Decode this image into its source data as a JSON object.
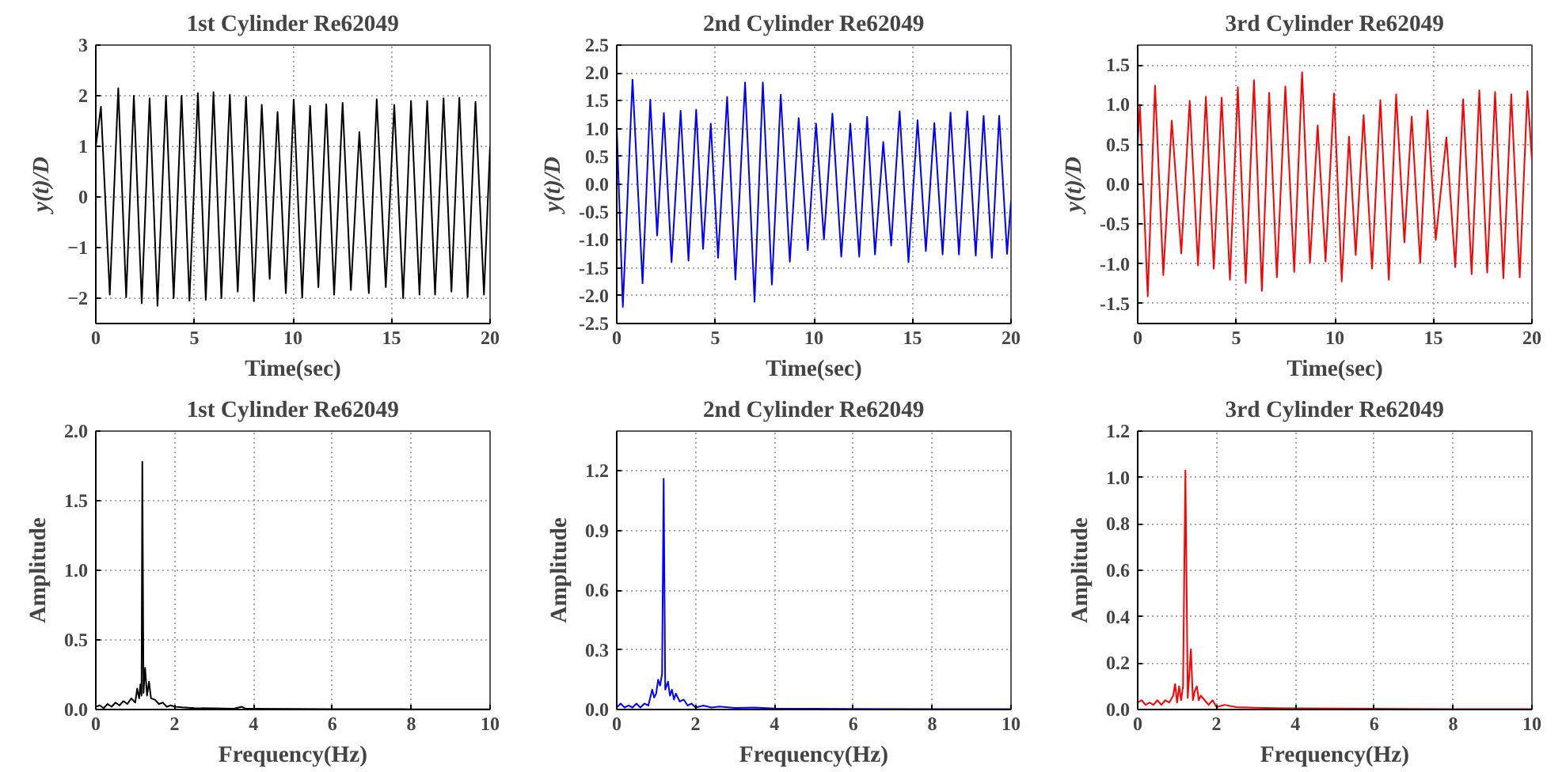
{
  "chart_data": [
    {
      "type": "line",
      "title": "1st Cylinder Re62049",
      "xlabel": "Time(sec)",
      "ylabel": "y(t)/D",
      "grid": true,
      "xlim": [
        0,
        20
      ],
      "ylim": [
        -2.5,
        3
      ],
      "xticks": [
        0,
        5,
        10,
        15,
        20
      ],
      "yticks": [
        -2,
        -1,
        0,
        1,
        2,
        3
      ],
      "x": [
        0,
        0.26,
        0.71,
        1.14,
        1.54,
        1.93,
        2.33,
        2.73,
        3.13,
        3.56,
        3.95,
        4.35,
        4.75,
        5.18,
        5.58,
        5.97,
        6.37,
        6.8,
        7.2,
        7.62,
        8.02,
        8.42,
        8.82,
        9.22,
        9.64,
        10.04,
        10.47,
        10.87,
        11.29,
        11.69,
        12.09,
        12.52,
        12.94,
        13.37,
        13.85,
        14.25,
        14.71,
        15.14,
        15.59,
        15.99,
        16.42,
        16.81,
        17.21,
        17.64,
        18.04,
        18.44,
        18.86,
        19.26,
        19.69,
        20
      ],
      "series": [
        {
          "color": "#000000",
          "values": [
            1.0,
            1.78,
            -1.93,
            2.15,
            -1.98,
            2.0,
            -2.1,
            1.95,
            -2.15,
            2.0,
            -2.0,
            2.0,
            -2.05,
            2.05,
            -2.03,
            2.07,
            -2.0,
            2.02,
            -1.87,
            1.98,
            -2.06,
            1.82,
            -1.62,
            1.68,
            -1.9,
            1.92,
            -1.99,
            1.8,
            -1.78,
            1.83,
            -1.93,
            1.86,
            -1.84,
            1.28,
            -1.9,
            1.93,
            -1.78,
            1.82,
            -2.0,
            1.9,
            -1.93,
            1.9,
            -1.93,
            1.95,
            -1.87,
            1.96,
            -1.98,
            1.88,
            -1.93,
            1.0
          ]
        }
      ]
    },
    {
      "type": "line",
      "title": "2nd Cylinder Re62049",
      "xlabel": "Time(sec)",
      "ylabel": "y(t)/D",
      "grid": true,
      "xlim": [
        0,
        20
      ],
      "ylim": [
        -2.5,
        2.5
      ],
      "xticks": [
        0,
        5,
        10,
        15,
        20
      ],
      "yticks": [
        {
          "value": -2.5,
          "label": "-2.5"
        },
        {
          "value": -2.0,
          "label": "-2.0"
        },
        {
          "value": -1.5,
          "label": "-1.5"
        },
        {
          "value": -1.0,
          "label": "-1.0"
        },
        {
          "value": -0.5,
          "label": "-0.5"
        },
        {
          "value": 0,
          "label": "0.0"
        },
        {
          "value": 0.5,
          "label": "0.5"
        },
        {
          "value": 1.0,
          "label": "1.0"
        },
        {
          "value": 1.5,
          "label": "1.5"
        },
        {
          "value": 2.0,
          "label": "2.0"
        },
        {
          "value": 2.5,
          "label": "2.5"
        }
      ],
      "x": [
        0,
        0.31,
        0.8,
        1.31,
        1.7,
        2.05,
        2.39,
        2.78,
        3.24,
        3.64,
        4.03,
        4.38,
        4.77,
        5.14,
        5.6,
        6.02,
        6.51,
        6.99,
        7.41,
        7.87,
        8.32,
        8.78,
        9.23,
        9.69,
        10.11,
        10.51,
        10.94,
        11.39,
        11.85,
        12.3,
        12.7,
        13.1,
        13.52,
        13.92,
        14.35,
        14.8,
        15.26,
        15.68,
        16.11,
        16.53,
        16.93,
        17.36,
        17.78,
        18.21,
        18.61,
        19.03,
        19.4,
        19.8,
        20
      ],
      "series": [
        {
          "color": "#0000ff",
          "values": [
            1.04,
            -2.2,
            1.88,
            -1.78,
            1.52,
            -0.92,
            1.28,
            -1.4,
            1.32,
            -1.37,
            1.34,
            -1.16,
            1.09,
            -1.32,
            1.57,
            -1.71,
            1.83,
            -2.11,
            1.83,
            -1.8,
            1.61,
            -1.39,
            1.19,
            -1.18,
            1.09,
            -0.99,
            1.27,
            -1.3,
            1.09,
            -1.3,
            1.21,
            -1.26,
            0.76,
            -1.1,
            1.31,
            -1.4,
            1.15,
            -1.2,
            1.1,
            -1.26,
            1.29,
            -1.26,
            1.31,
            -1.28,
            1.23,
            -1.32,
            1.23,
            -1.25,
            -0.3
          ]
        }
      ]
    },
    {
      "type": "line",
      "title": "3rd Cylinder Re62049",
      "xlabel": "Time(sec)",
      "ylabel": "y(t)/D",
      "grid": true,
      "xlim": [
        0,
        20
      ],
      "ylim": [
        -1.75,
        1.75
      ],
      "xticks": [
        0,
        5,
        10,
        15,
        20
      ],
      "yticks": [
        {
          "value": -1.5,
          "label": "-1.5"
        },
        {
          "value": -1.0,
          "label": "-1.0"
        },
        {
          "value": -0.5,
          "label": "-0.5"
        },
        {
          "value": 0,
          "label": "0.0"
        },
        {
          "value": 0.5,
          "label": "0.5"
        },
        {
          "value": 1.0,
          "label": "1.0"
        },
        {
          "value": 1.5,
          "label": "1.5"
        }
      ],
      "x": [
        0,
        0.11,
        0.51,
        0.88,
        1.3,
        1.73,
        2.21,
        2.64,
        3.06,
        3.46,
        3.86,
        4.26,
        4.68,
        5.08,
        5.48,
        5.9,
        6.3,
        6.67,
        7.06,
        7.49,
        7.94,
        8.34,
        8.74,
        9.13,
        9.53,
        9.96,
        10.35,
        10.72,
        11.06,
        11.46,
        11.89,
        12.31,
        12.74,
        13.11,
        13.53,
        13.9,
        14.33,
        14.7,
        15.12,
        15.66,
        16.11,
        16.51,
        16.94,
        17.33,
        17.73,
        18.13,
        18.55,
        18.95,
        19.38,
        19.77,
        20
      ],
      "series": [
        {
          "color": "#ff0000",
          "values": [
            0.5,
            1.0,
            -1.41,
            1.24,
            -1.14,
            0.8,
            -0.87,
            1.05,
            -1.02,
            1.1,
            -1.06,
            1.09,
            -1.2,
            1.22,
            -1.24,
            1.31,
            -1.34,
            1.15,
            -1.17,
            1.23,
            -1.1,
            1.41,
            -0.99,
            0.74,
            -0.97,
            1.14,
            -1.22,
            0.6,
            -0.89,
            0.87,
            -1.06,
            1.06,
            -1.2,
            1.13,
            -0.73,
            0.85,
            -0.99,
            0.93,
            -0.7,
            0.59,
            -1.04,
            1.07,
            -1.13,
            1.18,
            -1.11,
            1.16,
            -1.18,
            1.13,
            -1.17,
            1.17,
            0.3
          ]
        }
      ]
    },
    {
      "type": "line",
      "title": "1st Cylinder Re62049",
      "xlabel": "Frequency(Hz)",
      "ylabel": "Amplitude",
      "grid": true,
      "xlim": [
        0,
        10
      ],
      "ylim": [
        0,
        2
      ],
      "xticks": [
        0,
        2,
        4,
        6,
        8,
        10
      ],
      "yticks": [
        {
          "value": 0,
          "label": "0.0"
        },
        {
          "value": 0.5,
          "label": "0.5"
        },
        {
          "value": 1.0,
          "label": "1.0"
        },
        {
          "value": 1.5,
          "label": "1.5"
        },
        {
          "value": 2.0,
          "label": "2.0"
        }
      ],
      "x": [
        0,
        0.1,
        0.2,
        0.3,
        0.4,
        0.5,
        0.6,
        0.7,
        0.8,
        0.9,
        1.0,
        1.05,
        1.1,
        1.13,
        1.16,
        1.18,
        1.21,
        1.25,
        1.3,
        1.35,
        1.4,
        1.5,
        1.6,
        1.7,
        1.8,
        1.9,
        2.0,
        2.2,
        2.5,
        3,
        3.5,
        3.7,
        3.8,
        4,
        5,
        6,
        7,
        8,
        9,
        10
      ],
      "series": [
        {
          "color": "#000000",
          "values": [
            0.02,
            0.03,
            0.01,
            0.04,
            0.02,
            0.05,
            0.03,
            0.06,
            0.04,
            0.08,
            0.05,
            0.15,
            0.08,
            0.18,
            0.1,
            1.78,
            0.12,
            0.3,
            0.1,
            0.2,
            0.08,
            0.07,
            0.04,
            0.05,
            0.02,
            0.03,
            0.02,
            0.015,
            0.01,
            0.008,
            0.006,
            0.02,
            0.005,
            0.005,
            0.004,
            0.003,
            0.003,
            0.002,
            0.002,
            0.002
          ]
        }
      ]
    },
    {
      "type": "line",
      "title": "2nd Cylinder Re62049",
      "xlabel": "Frequency(Hz)",
      "ylabel": "Amplitude",
      "grid": true,
      "xlim": [
        0,
        10
      ],
      "ylim": [
        0,
        1.4
      ],
      "xticks": [
        0,
        2,
        4,
        6,
        8,
        10
      ],
      "yticks": [
        {
          "value": 0,
          "label": "0.0"
        },
        {
          "value": 0.3,
          "label": "0.3"
        },
        {
          "value": 0.6,
          "label": "0.6"
        },
        {
          "value": 0.9,
          "label": "0.9"
        },
        {
          "value": 1.2,
          "label": "1.2"
        }
      ],
      "x": [
        0,
        0.1,
        0.2,
        0.3,
        0.4,
        0.5,
        0.6,
        0.7,
        0.8,
        0.9,
        0.95,
        1.0,
        1.05,
        1.1,
        1.15,
        1.19,
        1.23,
        1.3,
        1.35,
        1.4,
        1.45,
        1.5,
        1.6,
        1.7,
        1.8,
        1.9,
        2.0,
        2.2,
        2.4,
        2.6,
        3,
        3.5,
        4,
        5,
        6,
        8,
        10
      ],
      "series": [
        {
          "color": "#0000ff",
          "values": [
            0.01,
            0.03,
            0.01,
            0.02,
            0.01,
            0.03,
            0.01,
            0.03,
            0.02,
            0.1,
            0.06,
            0.08,
            0.15,
            0.12,
            0.18,
            1.16,
            0.1,
            0.14,
            0.07,
            0.1,
            0.05,
            0.08,
            0.04,
            0.05,
            0.02,
            0.03,
            0.01,
            0.02,
            0.01,
            0.015,
            0.008,
            0.01,
            0.005,
            0.004,
            0.003,
            0.002,
            0.002
          ]
        }
      ]
    },
    {
      "type": "line",
      "title": "3rd Cylinder Re62049",
      "xlabel": "Frequency(Hz)",
      "ylabel": "Amplitude",
      "grid": true,
      "xlim": [
        0,
        10
      ],
      "ylim": [
        0,
        1.2
      ],
      "xticks": [
        0,
        2,
        4,
        6,
        8,
        10
      ],
      "yticks": [
        {
          "value": 0,
          "label": "0.0"
        },
        {
          "value": 0.2,
          "label": "0.2"
        },
        {
          "value": 0.4,
          "label": "0.4"
        },
        {
          "value": 0.6,
          "label": "0.6"
        },
        {
          "value": 0.8,
          "label": "0.8"
        },
        {
          "value": 1.0,
          "label": "1.0"
        },
        {
          "value": 1.2,
          "label": "1.2"
        }
      ],
      "x": [
        0,
        0.1,
        0.2,
        0.3,
        0.4,
        0.5,
        0.6,
        0.7,
        0.8,
        0.9,
        0.95,
        1.0,
        1.05,
        1.1,
        1.15,
        1.21,
        1.27,
        1.35,
        1.4,
        1.45,
        1.5,
        1.55,
        1.6,
        1.7,
        1.8,
        1.9,
        2.0,
        2.2,
        2.5,
        3,
        3.5,
        4,
        5,
        6,
        8,
        10
      ],
      "series": [
        {
          "color": "#ff0000",
          "values": [
            0.03,
            0.04,
            0.02,
            0.03,
            0.02,
            0.04,
            0.02,
            0.04,
            0.03,
            0.06,
            0.11,
            0.03,
            0.1,
            0.04,
            0.1,
            1.03,
            0.05,
            0.26,
            0.04,
            0.08,
            0.1,
            0.04,
            0.06,
            0.04,
            0.02,
            0.04,
            0.01,
            0.02,
            0.01,
            0.008,
            0.006,
            0.005,
            0.004,
            0.003,
            0.002,
            0.002
          ]
        }
      ]
    }
  ]
}
